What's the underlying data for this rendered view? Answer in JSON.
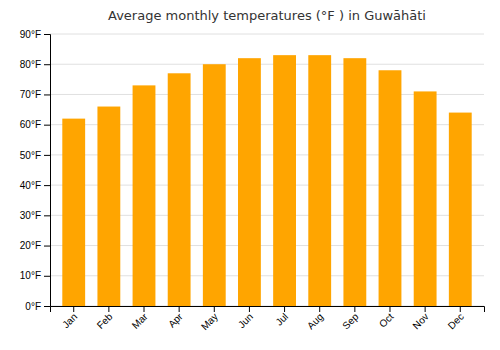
{
  "chart_data": {
    "type": "bar",
    "title": "Average monthly temperatures (°F ) in Guwāhāti",
    "categories": [
      "Jan",
      "Feb",
      "Mar",
      "Apr",
      "May",
      "Jun",
      "Jul",
      "Aug",
      "Sep",
      "Oct",
      "Nov",
      "Dec"
    ],
    "values": [
      62,
      66,
      73,
      77,
      80,
      82,
      83,
      83,
      82,
      78,
      71,
      64
    ],
    "color": "#FFA500",
    "ylim": [
      0,
      90
    ],
    "yticks": [
      {
        "value": 0,
        "label": "0°F"
      },
      {
        "value": 10,
        "label": "10°F"
      },
      {
        "value": 20,
        "label": "20°F"
      },
      {
        "value": 30,
        "label": "30°F"
      },
      {
        "value": 40,
        "label": "40°F"
      },
      {
        "value": 50,
        "label": "50°F"
      },
      {
        "value": 60,
        "label": "60°F"
      },
      {
        "value": 70,
        "label": "70°F"
      },
      {
        "value": 80,
        "label": "80°F"
      },
      {
        "value": 90,
        "label": "90°F"
      }
    ],
    "grid": true
  }
}
